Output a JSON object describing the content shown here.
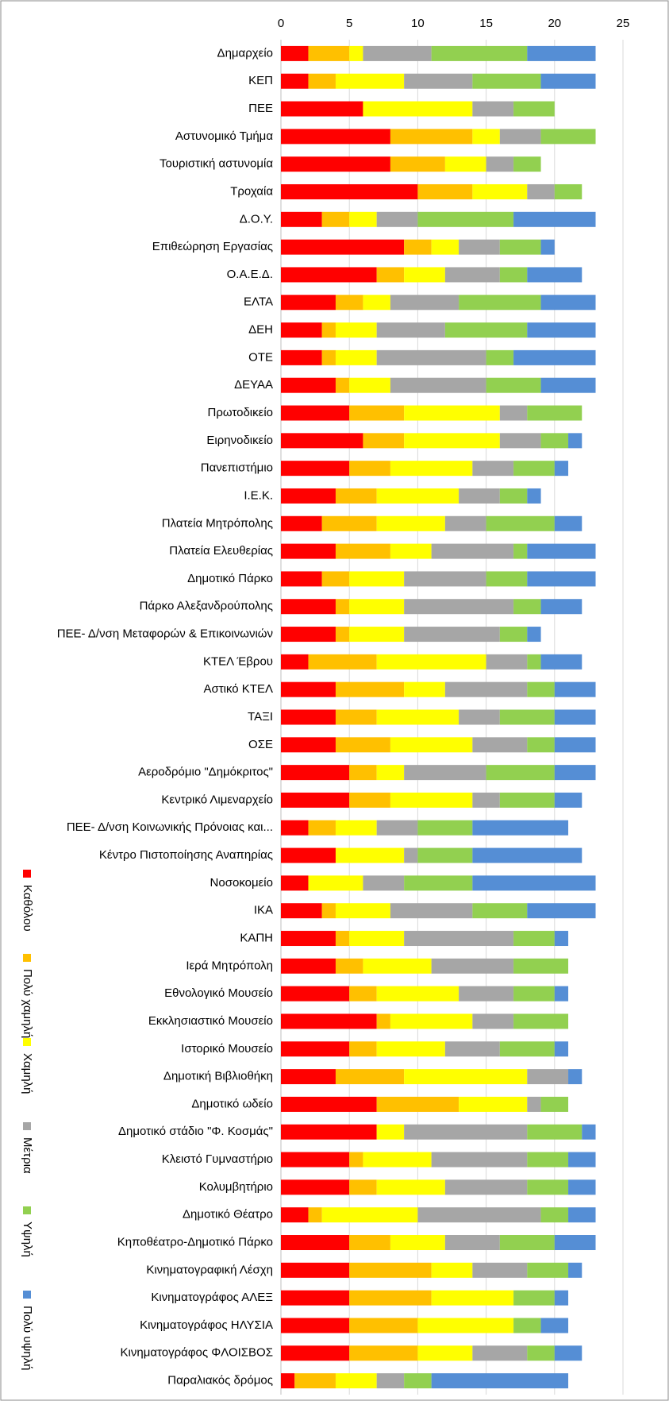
{
  "chart_data": {
    "type": "stacked_bar_horizontal",
    "categories": [
      "Δημαρχείο",
      "ΚΕΠ",
      "ΠΕΕ",
      "Αστυνομικό Τμήμα",
      "Τουριστική αστυνομία",
      "Τροχαία",
      "Δ.Ο.Υ.",
      "Επιθεώρηση Εργασίας",
      "Ο.Α.Ε.Δ.",
      "ΕΛΤΑ",
      "ΔΕΗ",
      "ΟΤΕ",
      "ΔΕΥΑΑ",
      "Πρωτοδικείο",
      "Ειρηνοδικείο",
      "Πανεπιστήμιο",
      "Ι.Ε.Κ.",
      "Πλατεία Μητρόπολης",
      "Πλατεία Ελευθερίας",
      "Δημοτικό Πάρκο",
      "Πάρκο Αλεξανδρούπολης",
      "ΠΕΕ- Δ/νση Μεταφορών & Επικοινωνιών",
      "ΚΤΕΛ Έβρου",
      "Αστικό ΚΤΕΛ",
      "ΤΑΞΙ",
      "ΟΣΕ",
      "Αεροδρόμιο \"Δημόκριτος\"",
      "Κεντρικό Λιμεναρχείο",
      "ΠΕΕ- Δ/νση Κοινωνικής Πρόνοιας και...",
      "Κέντρο Πιστοποίησης Αναπηρίας",
      "Νοσοκομείο",
      "ΙΚΑ",
      "ΚΑΠΗ",
      "Ιερά Μητρόπολη",
      "Εθνολογικό Μουσείο",
      "Εκκλησιαστικό Μουσείο",
      "Ιστορικό Μουσείο",
      "Δημοτική Βιβλιοθήκη",
      "Δημοτικό ωδείο",
      "Δημοτικό στάδιο \"Φ. Κοσμάς\"",
      "Κλειστό Γυμναστήριο",
      "Κολυμβητήριο",
      "Δημοτικό Θέατρο",
      "Κηποθέατρο-Δημοτικό Πάρκο",
      "Κινηματογραφική Λέσχη",
      "Κινηματογράφος ΑΛΕΞ",
      "Κινηματογράφος ΗΛΥΣΙΑ",
      "Κινηματογράφος ΦΛΟΙΣΒΟΣ",
      "Παραλιακός δρόμος"
    ],
    "series": [
      {
        "name": "Καθόλου",
        "color": "#ff0000",
        "values": [
          2,
          2,
          6,
          8,
          8,
          10,
          3,
          9,
          7,
          4,
          3,
          3,
          4,
          5,
          6,
          5,
          4,
          3,
          4,
          3,
          4,
          4,
          2,
          4,
          4,
          4,
          5,
          5,
          2,
          4,
          2,
          3,
          4,
          4,
          5,
          7,
          5,
          4,
          7,
          7,
          5,
          5,
          2,
          5,
          5,
          5,
          5,
          5,
          1
        ]
      },
      {
        "name": "Πολύ χαμηλή",
        "color": "#ffc000",
        "values": [
          3,
          2,
          0,
          6,
          4,
          4,
          2,
          2,
          2,
          2,
          1,
          1,
          1,
          4,
          3,
          3,
          3,
          4,
          4,
          2,
          1,
          1,
          5,
          5,
          3,
          4,
          2,
          3,
          2,
          0,
          0,
          1,
          1,
          2,
          2,
          1,
          2,
          5,
          6,
          0,
          1,
          2,
          1,
          3,
          6,
          6,
          5,
          5,
          3
        ]
      },
      {
        "name": "Χαμηλή",
        "color": "#ffff00",
        "values": [
          1,
          5,
          8,
          2,
          3,
          4,
          2,
          2,
          3,
          2,
          3,
          3,
          3,
          7,
          7,
          6,
          6,
          5,
          3,
          4,
          4,
          4,
          8,
          3,
          6,
          6,
          2,
          6,
          3,
          5,
          4,
          4,
          4,
          5,
          6,
          6,
          5,
          9,
          5,
          2,
          5,
          5,
          7,
          4,
          3,
          6,
          7,
          4,
          3
        ]
      },
      {
        "name": "Μέτρια",
        "color": "#a6a6a6",
        "values": [
          5,
          5,
          3,
          3,
          2,
          2,
          3,
          3,
          4,
          5,
          5,
          8,
          7,
          2,
          3,
          3,
          3,
          3,
          6,
          6,
          8,
          7,
          3,
          6,
          3,
          4,
          6,
          2,
          3,
          1,
          3,
          6,
          8,
          6,
          4,
          3,
          4,
          3,
          1,
          9,
          7,
          6,
          9,
          4,
          4,
          0,
          0,
          4,
          2
        ]
      },
      {
        "name": "Υψηλή",
        "color": "#92d050",
        "values": [
          7,
          5,
          3,
          4,
          2,
          2,
          7,
          3,
          2,
          6,
          6,
          2,
          4,
          4,
          2,
          3,
          2,
          5,
          1,
          3,
          2,
          2,
          1,
          2,
          4,
          2,
          5,
          4,
          4,
          4,
          5,
          4,
          3,
          4,
          3,
          4,
          4,
          0,
          2,
          4,
          3,
          3,
          2,
          4,
          3,
          3,
          2,
          2,
          2
        ]
      },
      {
        "name": "Πολύ υψηλή",
        "color": "#558ed5",
        "values": [
          5,
          4,
          0,
          0,
          0,
          0,
          6,
          1,
          4,
          4,
          5,
          6,
          4,
          0,
          1,
          1,
          1,
          2,
          5,
          5,
          3,
          1,
          3,
          3,
          3,
          3,
          3,
          2,
          7,
          8,
          9,
          5,
          1,
          0,
          1,
          0,
          1,
          1,
          0,
          1,
          2,
          2,
          2,
          3,
          1,
          1,
          2,
          2,
          10
        ]
      }
    ],
    "xlim": [
      0,
      25
    ],
    "xticks": [
      0,
      5,
      10,
      15,
      20,
      25
    ],
    "grid": true,
    "legend": "left"
  }
}
